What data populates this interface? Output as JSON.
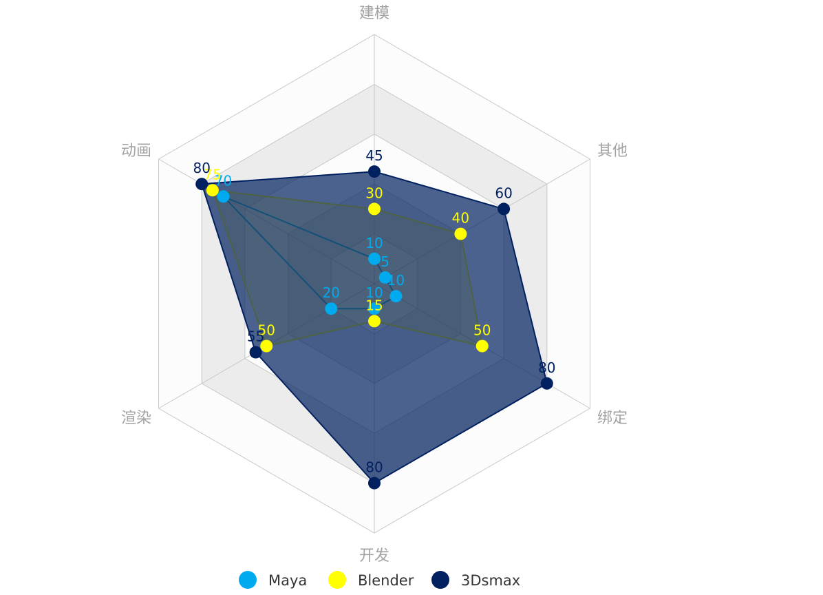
{
  "chart_data": {
    "type": "radar",
    "indicators": [
      {
        "name": "建模",
        "max": 100
      },
      {
        "name": "其他",
        "max": 100
      },
      {
        "name": "绑定",
        "max": 100
      },
      {
        "name": "开发",
        "max": 100
      },
      {
        "name": "渲染",
        "max": 100
      },
      {
        "name": "动画",
        "max": 100
      }
    ],
    "series": [
      {
        "name": "Maya",
        "color": "#00aaee",
        "values": [
          10,
          5,
          10,
          10,
          20,
          70
        ]
      },
      {
        "name": "Blender",
        "color": "#ffff00",
        "values": [
          30,
          40,
          50,
          15,
          50,
          75
        ]
      },
      {
        "name": "3Dsmax",
        "color": "#002060",
        "values": [
          45,
          60,
          80,
          80,
          55,
          80
        ]
      }
    ],
    "legend_position": "bottom-center",
    "split_number": 5,
    "axis_label_color": "#a3a3a3",
    "split_area_colors": [
      "#fcfcfc",
      "#ececec"
    ],
    "split_line_color": "#c8c8c8"
  }
}
